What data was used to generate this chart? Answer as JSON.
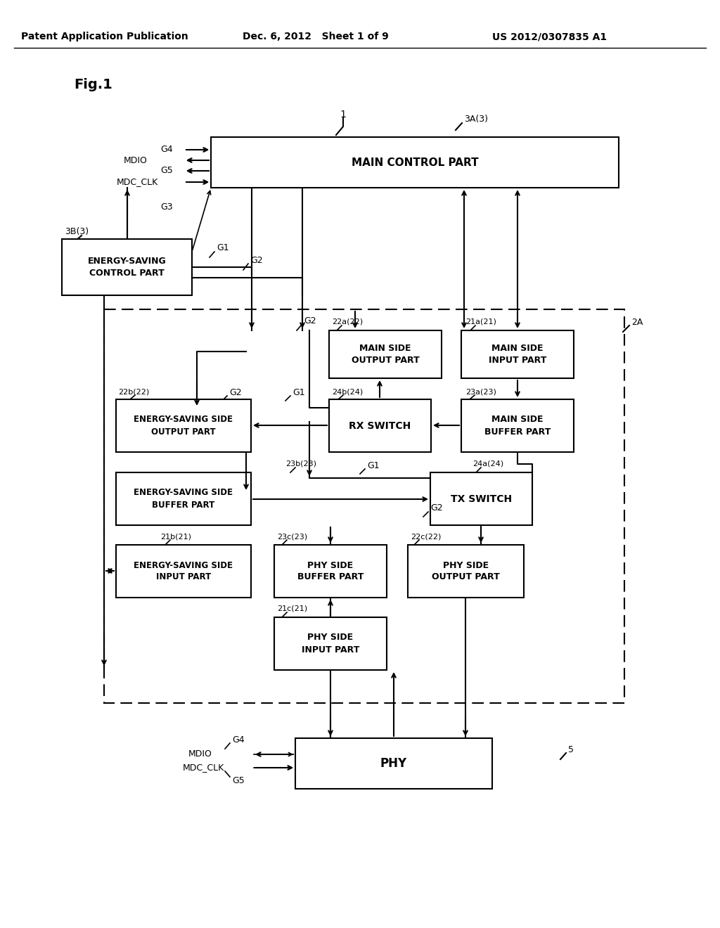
{
  "bg_color": "#ffffff",
  "header_left": "Patent Application Publication",
  "header_center": "Dec. 6, 2012   Sheet 1 of 9",
  "header_right": "US 2012/0307835 A1",
  "fig_label": "Fig.1"
}
